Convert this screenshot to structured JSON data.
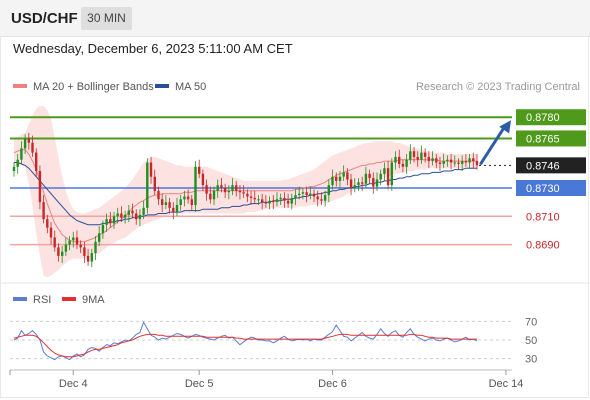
{
  "header": {
    "pair": "USD/CHF",
    "timeframe": "30 MIN"
  },
  "subheader": {
    "datetime": "Wednesday, December 6, 2023 5:11:00 AM CET"
  },
  "legend": {
    "ma20": {
      "label": "MA 20 + Bollinger Bands",
      "color": "#f08080"
    },
    "ma50": {
      "label": "MA 50",
      "color": "#2a4d9a"
    },
    "rsi": {
      "label": "RSI",
      "color": "#5b7bd5"
    },
    "rsi_ma": {
      "label": "9MA",
      "color": "#e03030"
    }
  },
  "credit": "Research © 2023 Trading Central",
  "colors": {
    "up": "#1f8f1f",
    "down": "#c62828",
    "resistance": "#4f9a1a",
    "pivot": "#4a78d6",
    "support": "#f4a3a3",
    "current": "#222222",
    "band": "#fde2e2",
    "arrow": "#2b5ea7"
  },
  "chart_data": [
    {
      "type": "candlestick",
      "ylim": [
        0.8665,
        0.8795
      ],
      "x_ticks": [
        "Dec 4",
        "Dec 5",
        "Dec 6",
        "Dec 14"
      ],
      "levels": [
        {
          "value": 0.878,
          "label": "0.8780",
          "kind": "resistance"
        },
        {
          "value": 0.8765,
          "label": "0.8765",
          "kind": "resistance"
        },
        {
          "value": 0.8746,
          "label": "0.8746",
          "kind": "current"
        },
        {
          "value": 0.873,
          "label": "0.8730",
          "kind": "pivot"
        },
        {
          "value": 0.871,
          "label": "0.8710",
          "kind": "support"
        },
        {
          "value": 0.869,
          "label": "0.8690",
          "kind": "support"
        }
      ],
      "close": [
        0.8745,
        0.875,
        0.8758,
        0.8765,
        0.8762,
        0.8755,
        0.8742,
        0.872,
        0.8708,
        0.8702,
        0.8695,
        0.8688,
        0.8682,
        0.8685,
        0.869,
        0.8693,
        0.8695,
        0.869,
        0.8688,
        0.8682,
        0.8678,
        0.8684,
        0.8692,
        0.8698,
        0.8704,
        0.8708,
        0.8705,
        0.871,
        0.8712,
        0.8709,
        0.8711,
        0.8714,
        0.8712,
        0.8708,
        0.8711,
        0.8716,
        0.8748,
        0.8738,
        0.8728,
        0.8722,
        0.8718,
        0.872,
        0.8716,
        0.8713,
        0.8718,
        0.8722,
        0.8724,
        0.8722,
        0.8718,
        0.8745,
        0.874,
        0.8732,
        0.8726,
        0.8722,
        0.8728,
        0.8732,
        0.873,
        0.8727,
        0.8728,
        0.8732,
        0.8728,
        0.8727,
        0.8726,
        0.8724,
        0.8723,
        0.8722,
        0.8722,
        0.872,
        0.8719,
        0.8721,
        0.872,
        0.8722,
        0.8723,
        0.8721,
        0.8719,
        0.8723,
        0.8725,
        0.8726,
        0.8727,
        0.8725,
        0.8726,
        0.8724,
        0.8722,
        0.8721,
        0.8725,
        0.8732,
        0.8738,
        0.8735,
        0.8738,
        0.8741,
        0.8736,
        0.873,
        0.8732,
        0.8734,
        0.8733,
        0.874,
        0.8737,
        0.8731,
        0.8736,
        0.874,
        0.8744,
        0.8732,
        0.8748,
        0.8752,
        0.8747,
        0.8745,
        0.875,
        0.8756,
        0.8752,
        0.875,
        0.8755,
        0.8752,
        0.8749,
        0.8751,
        0.8748,
        0.8747,
        0.8749,
        0.875,
        0.8748,
        0.8748,
        0.8747,
        0.8749,
        0.8748,
        0.8751,
        0.8749,
        0.8746
      ],
      "ma20": [
        0.8755,
        0.8756,
        0.8757,
        0.8757,
        0.8754,
        0.8749,
        0.8743,
        0.8735,
        0.8727,
        0.8719,
        0.8712,
        0.8705,
        0.8701,
        0.8697,
        0.8695,
        0.8693,
        0.8692,
        0.8692,
        0.8692,
        0.8692,
        0.8693,
        0.8694,
        0.8695,
        0.8697,
        0.8698,
        0.87,
        0.8702,
        0.8704,
        0.8706,
        0.8708,
        0.871,
        0.8713,
        0.8716,
        0.8718,
        0.872,
        0.8721,
        0.8723,
        0.8724,
        0.8725,
        0.8725,
        0.8726,
        0.8726,
        0.8726,
        0.8726,
        0.8726,
        0.8726,
        0.8727,
        0.8727,
        0.8727,
        0.8728,
        0.8728,
        0.8728,
        0.8728,
        0.8728,
        0.8728,
        0.8728,
        0.8728,
        0.8728,
        0.8728,
        0.8728,
        0.8728,
        0.8728,
        0.8728,
        0.8728,
        0.8728,
        0.8728,
        0.8728,
        0.8728,
        0.8728,
        0.8728,
        0.8728,
        0.8728,
        0.8728,
        0.8728,
        0.8728,
        0.8728,
        0.8729,
        0.8729,
        0.873,
        0.873,
        0.8731,
        0.8731,
        0.8732,
        0.8733,
        0.8734,
        0.8736,
        0.8737,
        0.8739,
        0.874,
        0.8741,
        0.8742,
        0.8743,
        0.8744,
        0.8745,
        0.8746,
        0.8746,
        0.8747,
        0.8747,
        0.8748,
        0.8748,
        0.8749,
        0.8749,
        0.8749,
        0.8749,
        0.875,
        0.875,
        0.875,
        0.875,
        0.875,
        0.875,
        0.875,
        0.875,
        0.875,
        0.875,
        0.875,
        0.8749,
        0.8749,
        0.8749,
        0.8749,
        0.8749,
        0.8749,
        0.8749,
        0.8749,
        0.8749,
        0.8749,
        0.8749
      ],
      "band_upper": [
        0.8765,
        0.8766,
        0.8768,
        0.8769,
        0.8775,
        0.8781,
        0.8786,
        0.8788,
        0.8788,
        0.8785,
        0.8779,
        0.8766,
        0.8752,
        0.8738,
        0.8728,
        0.872,
        0.8715,
        0.8713,
        0.8712,
        0.8712,
        0.8713,
        0.8714,
        0.8715,
        0.8716,
        0.8718,
        0.872,
        0.8722,
        0.8724,
        0.8726,
        0.8728,
        0.873,
        0.8733,
        0.8736,
        0.874,
        0.8744,
        0.8748,
        0.875,
        0.8752,
        0.8752,
        0.8751,
        0.875,
        0.8749,
        0.8748,
        0.8747,
        0.8746,
        0.8746,
        0.8745,
        0.8745,
        0.8745,
        0.8745,
        0.8745,
        0.8745,
        0.8745,
        0.8744,
        0.8743,
        0.8742,
        0.8741,
        0.874,
        0.8739,
        0.8738,
        0.8737,
        0.8736,
        0.8735,
        0.8735,
        0.8735,
        0.8735,
        0.8735,
        0.8735,
        0.8735,
        0.8735,
        0.8735,
        0.8735,
        0.8735,
        0.8736,
        0.8736,
        0.8737,
        0.8738,
        0.8739,
        0.874,
        0.8741,
        0.8742,
        0.8743,
        0.8745,
        0.8747,
        0.8749,
        0.8751,
        0.8753,
        0.8754,
        0.8755,
        0.8756,
        0.8757,
        0.8758,
        0.8759,
        0.876,
        0.8761,
        0.8762,
        0.8762,
        0.8763,
        0.8763,
        0.8763,
        0.8763,
        0.8763,
        0.8763,
        0.8762,
        0.8762,
        0.8761,
        0.876,
        0.8759,
        0.8758,
        0.8758,
        0.8757,
        0.8756,
        0.8756,
        0.8755,
        0.8755,
        0.8755,
        0.8755,
        0.8754,
        0.8754,
        0.8754,
        0.8754,
        0.8754,
        0.8754,
        0.8754,
        0.8754,
        0.8754
      ],
      "band_lower": [
        0.8745,
        0.8746,
        0.8746,
        0.8745,
        0.8733,
        0.8717,
        0.8698,
        0.8682,
        0.8668,
        0.8667,
        0.8668,
        0.867,
        0.8672,
        0.8675,
        0.8677,
        0.8679,
        0.868,
        0.868,
        0.868,
        0.868,
        0.8681,
        0.8682,
        0.8683,
        0.8684,
        0.8686,
        0.8688,
        0.869,
        0.8691,
        0.8693,
        0.8694,
        0.8695,
        0.8697,
        0.8699,
        0.8701,
        0.8703,
        0.8704,
        0.8705,
        0.8706,
        0.8707,
        0.8708,
        0.8709,
        0.871,
        0.8711,
        0.8712,
        0.8712,
        0.8712,
        0.8712,
        0.8712,
        0.8712,
        0.8712,
        0.8712,
        0.8712,
        0.8712,
        0.8712,
        0.8712,
        0.8712,
        0.8712,
        0.8712,
        0.8712,
        0.8712,
        0.8712,
        0.8712,
        0.8712,
        0.8713,
        0.8713,
        0.8713,
        0.8714,
        0.8714,
        0.8715,
        0.8715,
        0.8716,
        0.8716,
        0.8716,
        0.8716,
        0.8716,
        0.8716,
        0.8716,
        0.8717,
        0.8717,
        0.8717,
        0.8718,
        0.8718,
        0.8718,
        0.8719,
        0.8719,
        0.872,
        0.8721,
        0.8722,
        0.8723,
        0.8724,
        0.8726,
        0.8727,
        0.8729,
        0.873,
        0.8731,
        0.8732,
        0.8733,
        0.8734,
        0.8735,
        0.8736,
        0.8737,
        0.8738,
        0.8739,
        0.874,
        0.874,
        0.8741,
        0.8741,
        0.8742,
        0.8742,
        0.8743,
        0.8743,
        0.8743,
        0.8744,
        0.8744,
        0.8744,
        0.8744,
        0.8744,
        0.8744,
        0.8744,
        0.8744,
        0.8744,
        0.8744,
        0.8744,
        0.8744,
        0.8744,
        0.8744
      ],
      "ma50": [
        0.8748,
        0.8748,
        0.8747,
        0.8746,
        0.8744,
        0.8741,
        0.8738,
        0.8735,
        0.8732,
        0.8729,
        0.8726,
        0.8723,
        0.872,
        0.8717,
        0.8714,
        0.8711,
        0.8709,
        0.8707,
        0.8706,
        0.8705,
        0.8704,
        0.8704,
        0.8704,
        0.8704,
        0.8705,
        0.8705,
        0.8706,
        0.8706,
        0.8707,
        0.8707,
        0.8708,
        0.8708,
        0.8709,
        0.8709,
        0.871,
        0.871,
        0.8711,
        0.8711,
        0.8711,
        0.8712,
        0.8712,
        0.8712,
        0.8713,
        0.8713,
        0.8713,
        0.8713,
        0.8714,
        0.8714,
        0.8714,
        0.8714,
        0.8714,
        0.8715,
        0.8715,
        0.8715,
        0.8715,
        0.8715,
        0.8716,
        0.8716,
        0.8716,
        0.8717,
        0.8717,
        0.8717,
        0.8718,
        0.8718,
        0.8719,
        0.8719,
        0.8719,
        0.872,
        0.872,
        0.872,
        0.8721,
        0.8721,
        0.8721,
        0.8722,
        0.8722,
        0.8722,
        0.8723,
        0.8723,
        0.8724,
        0.8724,
        0.8725,
        0.8725,
        0.8726,
        0.8726,
        0.8727,
        0.8727,
        0.8728,
        0.8728,
        0.8729,
        0.8729,
        0.873,
        0.873,
        0.8731,
        0.8731,
        0.8732,
        0.8732,
        0.8733,
        0.8733,
        0.8734,
        0.8734,
        0.8735,
        0.8735,
        0.8736,
        0.8736,
        0.8737,
        0.8737,
        0.8738,
        0.8738,
        0.8739,
        0.8739,
        0.874,
        0.874,
        0.874,
        0.8741,
        0.8741,
        0.8741,
        0.8742,
        0.8742,
        0.8742,
        0.8743,
        0.8743,
        0.8743,
        0.8744,
        0.8744,
        0.8744,
        0.8744
      ]
    },
    {
      "type": "line",
      "name": "RSI",
      "ylim": [
        20,
        80
      ],
      "y_ticks": [
        70,
        50,
        30
      ],
      "series": [
        {
          "name": "RSI",
          "values": [
            50,
            52,
            60,
            55,
            57,
            60,
            56,
            50,
            37,
            33,
            31,
            29,
            32,
            33,
            31,
            29,
            33,
            35,
            32,
            34,
            40,
            42,
            41,
            38,
            42,
            45,
            44,
            47,
            46,
            48,
            50,
            49,
            52,
            56,
            58,
            69,
            62,
            55,
            53,
            50,
            52,
            51,
            53,
            55,
            57,
            56,
            54,
            52,
            54,
            56,
            55,
            53,
            52,
            51,
            50,
            52,
            54,
            55,
            52,
            53,
            49,
            45,
            48,
            51,
            53,
            52,
            50,
            50,
            49,
            49,
            47,
            49,
            52,
            54,
            51,
            49,
            50,
            51,
            50,
            51,
            49,
            51,
            50,
            50,
            53,
            56,
            59,
            66,
            60,
            54,
            53,
            49,
            52,
            55,
            58,
            54,
            52,
            51,
            56,
            62,
            57,
            54,
            58,
            60,
            55,
            53,
            58,
            62,
            56,
            53,
            51,
            49,
            51,
            52,
            50,
            49,
            51,
            52,
            50,
            48,
            49,
            51,
            53,
            50,
            51,
            49
          ]
        },
        {
          "name": "9MA",
          "values": [
            52,
            53,
            54,
            55,
            55,
            55,
            54,
            51,
            47,
            43,
            39,
            36,
            34,
            33,
            32,
            32,
            32,
            33,
            34,
            35,
            37,
            39,
            40,
            40,
            41,
            42,
            43,
            44,
            45,
            47,
            48,
            49,
            50,
            52,
            54,
            55,
            56,
            56,
            56,
            55,
            55,
            54,
            54,
            54,
            54,
            54,
            54,
            54,
            54,
            54,
            54,
            54,
            53,
            53,
            53,
            53,
            53,
            53,
            53,
            53,
            52,
            52,
            51,
            51,
            51,
            51,
            51,
            51,
            51,
            51,
            51,
            51,
            51,
            51,
            51,
            51,
            51,
            51,
            51,
            51,
            51,
            51,
            51,
            51,
            52,
            53,
            54,
            55,
            56,
            56,
            56,
            55,
            55,
            55,
            55,
            55,
            55,
            55,
            55,
            55,
            55,
            55,
            55,
            55,
            55,
            55,
            55,
            56,
            56,
            55,
            55,
            54,
            53,
            53,
            52,
            52,
            52,
            52,
            51,
            51,
            51,
            51,
            51,
            51,
            51,
            51
          ]
        }
      ]
    }
  ]
}
